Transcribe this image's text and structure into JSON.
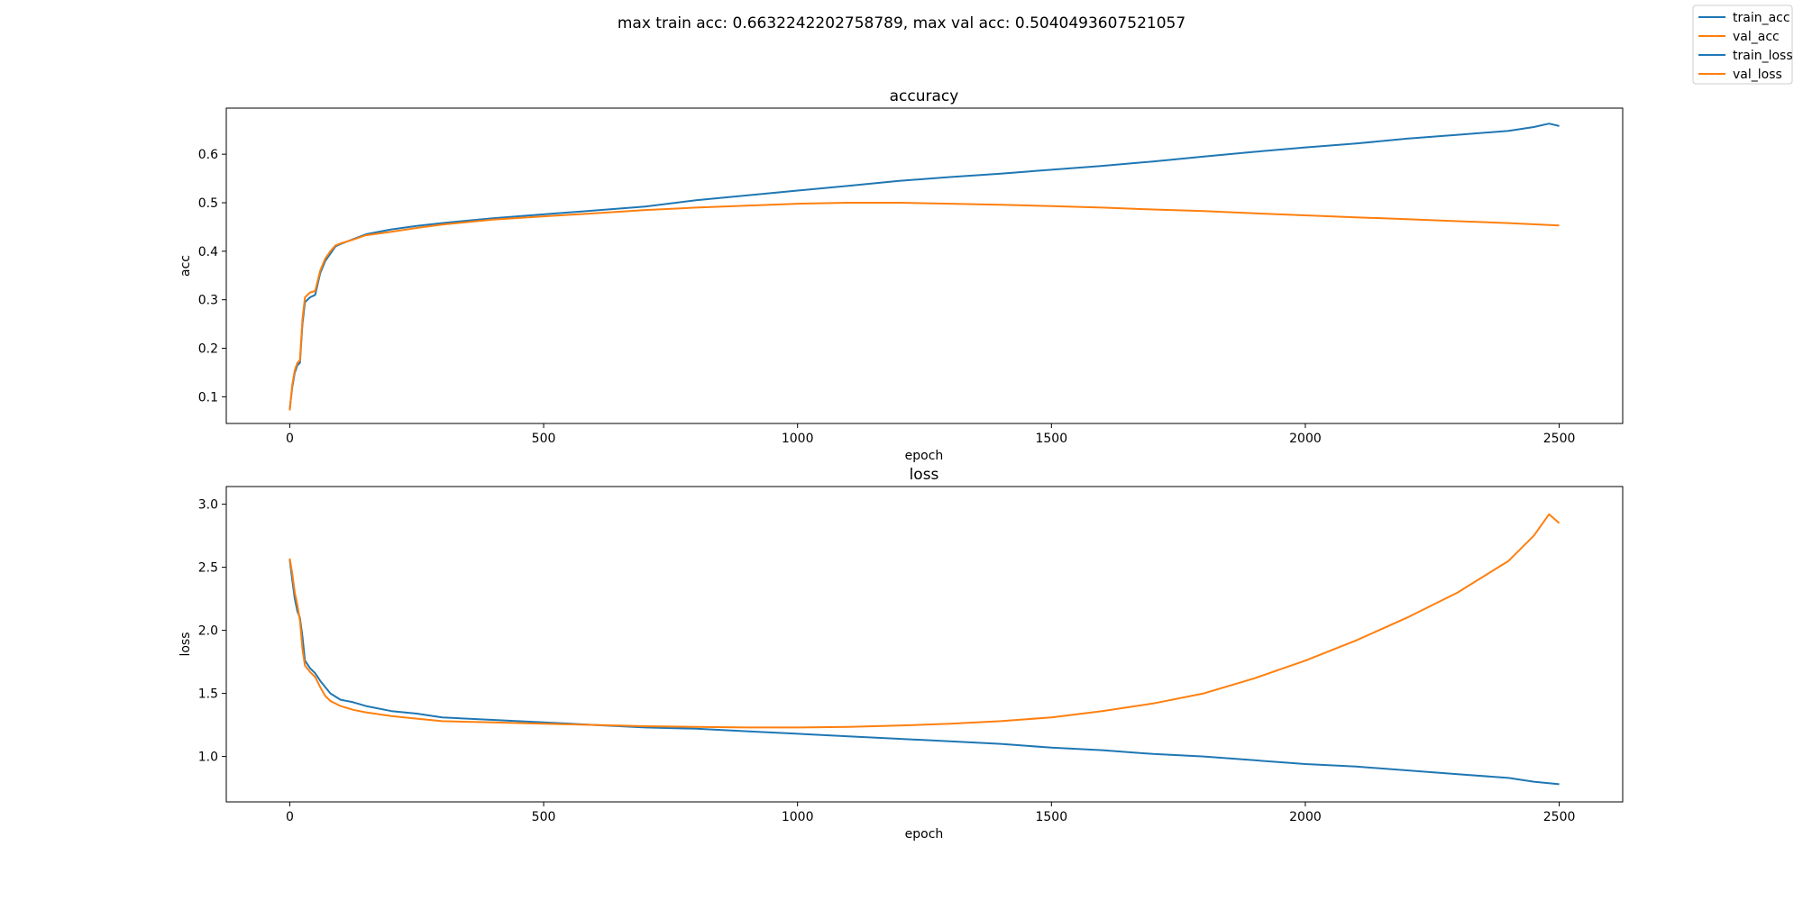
{
  "suptitle": "max train acc: 0.6632242202758789, max val acc: 0.5040493607521057",
  "legend": [
    {
      "label": "train_acc",
      "color": "#1f77b4"
    },
    {
      "label": "val_acc",
      "color": "#ff7f0e"
    },
    {
      "label": "train_loss",
      "color": "#1f77b4"
    },
    {
      "label": "val_loss",
      "color": "#ff7f0e"
    }
  ],
  "legend_placement": "top-right",
  "chart_data": [
    {
      "type": "line",
      "title": "accuracy",
      "xlabel": "epoch",
      "ylabel": "acc",
      "xlim": [
        -125,
        2625
      ],
      "ylim": [
        0.045,
        0.695
      ],
      "xticks": [
        0,
        500,
        1000,
        1500,
        2000,
        2500
      ],
      "yticks": [
        0.1,
        0.2,
        0.3,
        0.4,
        0.5,
        0.6
      ],
      "grid": false,
      "series": [
        {
          "name": "train_acc",
          "color": "#1f77b4",
          "x": [
            0,
            5,
            10,
            15,
            20,
            25,
            30,
            40,
            50,
            60,
            70,
            80,
            90,
            100,
            125,
            150,
            200,
            250,
            300,
            400,
            500,
            600,
            700,
            800,
            900,
            1000,
            1100,
            1200,
            1300,
            1400,
            1500,
            1600,
            1700,
            1800,
            1900,
            2000,
            2100,
            2200,
            2300,
            2400,
            2450,
            2480,
            2500
          ],
          "y": [
            0.075,
            0.12,
            0.15,
            0.165,
            0.17,
            0.25,
            0.295,
            0.305,
            0.31,
            0.355,
            0.38,
            0.395,
            0.41,
            0.415,
            0.425,
            0.435,
            0.445,
            0.452,
            0.458,
            0.468,
            0.476,
            0.484,
            0.492,
            0.505,
            0.515,
            0.525,
            0.535,
            0.545,
            0.553,
            0.56,
            0.568,
            0.576,
            0.585,
            0.595,
            0.605,
            0.614,
            0.622,
            0.632,
            0.64,
            0.648,
            0.656,
            0.663,
            0.658
          ]
        },
        {
          "name": "val_acc",
          "color": "#ff7f0e",
          "x": [
            0,
            5,
            10,
            15,
            20,
            25,
            30,
            40,
            50,
            60,
            70,
            80,
            90,
            100,
            125,
            150,
            200,
            250,
            300,
            400,
            500,
            600,
            700,
            800,
            900,
            1000,
            1100,
            1200,
            1300,
            1400,
            1500,
            1600,
            1700,
            1800,
            1900,
            2000,
            2100,
            2200,
            2300,
            2400,
            2500
          ],
          "y": [
            0.072,
            0.125,
            0.155,
            0.17,
            0.175,
            0.26,
            0.305,
            0.315,
            0.318,
            0.36,
            0.385,
            0.4,
            0.412,
            0.416,
            0.424,
            0.433,
            0.44,
            0.448,
            0.455,
            0.465,
            0.472,
            0.478,
            0.485,
            0.49,
            0.494,
            0.498,
            0.5,
            0.5,
            0.498,
            0.496,
            0.493,
            0.49,
            0.486,
            0.483,
            0.478,
            0.474,
            0.47,
            0.466,
            0.462,
            0.458,
            0.453
          ]
        }
      ]
    },
    {
      "type": "line",
      "title": "loss",
      "xlabel": "epoch",
      "ylabel": "loss",
      "xlim": [
        -125,
        2625
      ],
      "ylim": [
        0.64,
        3.14
      ],
      "xticks": [
        0,
        500,
        1000,
        1500,
        2000,
        2500
      ],
      "yticks": [
        1.0,
        1.5,
        2.0,
        2.5,
        3.0
      ],
      "ytick_labels": [
        "1.0",
        "1.5",
        "2.0",
        "2.5",
        "3.0"
      ],
      "grid": false,
      "series": [
        {
          "name": "train_loss",
          "color": "#1f77b4",
          "x": [
            0,
            5,
            10,
            15,
            20,
            25,
            30,
            40,
            50,
            60,
            70,
            80,
            100,
            125,
            150,
            200,
            250,
            300,
            400,
            500,
            600,
            700,
            800,
            900,
            1000,
            1100,
            1200,
            1300,
            1400,
            1500,
            1600,
            1700,
            1800,
            1900,
            2000,
            2100,
            2200,
            2300,
            2400,
            2450,
            2500
          ],
          "y": [
            2.56,
            2.4,
            2.25,
            2.15,
            2.1,
            1.95,
            1.76,
            1.7,
            1.66,
            1.6,
            1.55,
            1.5,
            1.45,
            1.43,
            1.4,
            1.36,
            1.34,
            1.31,
            1.29,
            1.27,
            1.25,
            1.23,
            1.22,
            1.2,
            1.18,
            1.16,
            1.14,
            1.12,
            1.1,
            1.07,
            1.05,
            1.02,
            1.0,
            0.97,
            0.94,
            0.92,
            0.89,
            0.86,
            0.83,
            0.8,
            0.78
          ]
        },
        {
          "name": "val_loss",
          "color": "#ff7f0e",
          "x": [
            0,
            5,
            10,
            15,
            20,
            25,
            30,
            40,
            50,
            60,
            70,
            80,
            100,
            125,
            150,
            200,
            250,
            300,
            400,
            500,
            600,
            700,
            800,
            900,
            1000,
            1100,
            1200,
            1300,
            1400,
            1500,
            1600,
            1700,
            1800,
            1900,
            2000,
            2100,
            2200,
            2300,
            2400,
            2450,
            2480,
            2500
          ],
          "y": [
            2.57,
            2.45,
            2.3,
            2.2,
            2.08,
            1.85,
            1.72,
            1.67,
            1.63,
            1.55,
            1.48,
            1.44,
            1.4,
            1.37,
            1.35,
            1.32,
            1.3,
            1.28,
            1.27,
            1.26,
            1.25,
            1.24,
            1.235,
            1.23,
            1.23,
            1.235,
            1.245,
            1.26,
            1.28,
            1.31,
            1.36,
            1.42,
            1.5,
            1.62,
            1.76,
            1.92,
            2.1,
            2.3,
            2.55,
            2.75,
            2.92,
            2.85
          ]
        }
      ]
    }
  ]
}
